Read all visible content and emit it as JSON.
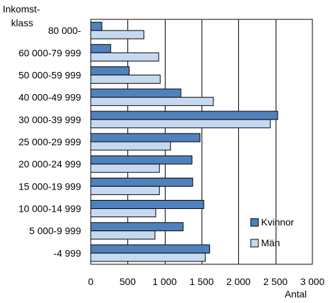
{
  "chart_data": {
    "type": "bar",
    "orientation": "horizontal",
    "y_title_lines": [
      "Inkomst-",
      "klass"
    ],
    "xlabel": "Antal",
    "categories": [
      "80 000-",
      "60 000-79 999",
      "50 000-59 999",
      "40 000-49 999",
      "30 000-39 999",
      "25 000-29 999",
      "20 000-24 999",
      "15 000-19 999",
      "10 000-14 999",
      "5 000-9 999",
      "-4 999"
    ],
    "series": [
      {
        "name": "Kvinnor",
        "color": "#4F81BD",
        "values": [
          150,
          270,
          520,
          1220,
          2530,
          1480,
          1370,
          1380,
          1530,
          1250,
          1610
        ]
      },
      {
        "name": "Män",
        "color": "#C6D9F1",
        "values": [
          720,
          920,
          940,
          1660,
          2430,
          1080,
          930,
          930,
          880,
          870,
          1550
        ]
      }
    ],
    "xlim": [
      0,
      3000
    ],
    "xticks": [
      0,
      500,
      1000,
      1500,
      2000,
      2500,
      3000
    ],
    "xtick_labels": [
      "0",
      "500",
      "1 000",
      "1 500",
      "2 000",
      "2 500",
      "3 000"
    ],
    "grid": "vertical",
    "legend_position": "bottom-right"
  }
}
